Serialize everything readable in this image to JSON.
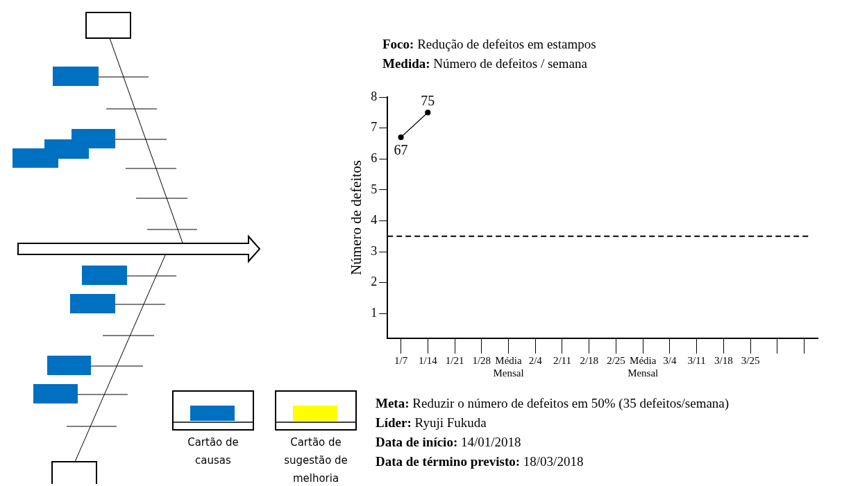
{
  "chart_data": {
    "type": "line",
    "title": "Foco: Redução de defeitos em estampos",
    "subtitle": "Medida: Número de defeitos / semana",
    "ylabel": "Número de defeitos",
    "categories": [
      "1/7",
      "1/14",
      "1/21",
      "1/28",
      "Média Mensal",
      "2/4",
      "2/11",
      "2/18",
      "2/25",
      "Média Mensal",
      "3/4",
      "3/11",
      "3/18",
      "3/25",
      null,
      null
    ],
    "series": [
      {
        "color": "#000000",
        "values": [
          6.7,
          7.5,
          null,
          null,
          null,
          null,
          null,
          null,
          null,
          null,
          null,
          null,
          null,
          null,
          null,
          null
        ]
      }
    ],
    "ylim": [
      0.2,
      8
    ],
    "yticks": [
      1,
      2,
      3,
      4,
      5,
      6,
      7,
      8
    ],
    "ref_lines": [
      {
        "axis": "y",
        "value": 3.5,
        "color": "#000000",
        "line_style": "dashed"
      }
    ],
    "grid": false,
    "legend": false,
    "marker": "circle",
    "line_style": "solid",
    "annotations": [
      "Meta: Reduzir o número de defeitos em 50% (35 defeitos/semana)",
      "Líder: Ryuji Fukuda",
      "Data de início: 14/01/2018",
      "Data de término previsto: 18/03/2018",
      "Cartão de causas",
      "Cartão de sugestão de melhoria",
      {
        "text": "67",
        "x": "1/7",
        "y": 6.7
      },
      {
        "text": "75",
        "x": "1/14",
        "y": 7.5
      }
    ]
  }
}
